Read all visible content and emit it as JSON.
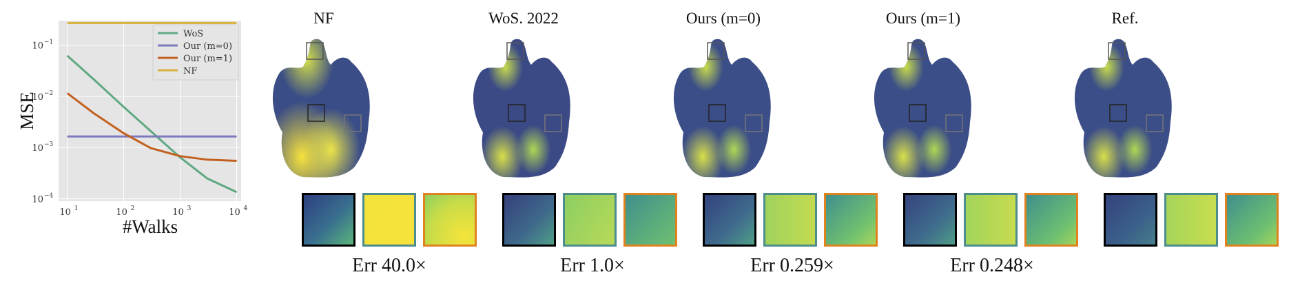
{
  "chart_data": {
    "type": "line",
    "xlabel": "#Walks",
    "ylabel": "MSE",
    "x_scale": "log",
    "y_scale": "log",
    "xlim": [
      7,
      12000
    ],
    "ylim": [
      9e-05,
      0.3
    ],
    "x_ticks": [
      {
        "v": 10,
        "label": "10"
      },
      {
        "v": 100,
        "label": "10"
      },
      {
        "v": 1000,
        "label": "10"
      },
      {
        "v": 10000,
        "label": "10"
      }
    ],
    "x_tick_exps": [
      "1",
      "2",
      "3",
      "4"
    ],
    "y_ticks": [
      {
        "v": 0.1,
        "label": "10"
      },
      {
        "v": 0.01,
        "label": "10"
      },
      {
        "v": 0.001,
        "label": "10"
      },
      {
        "v": 0.0001,
        "label": "10"
      }
    ],
    "y_tick_exps": [
      "−1",
      "−2",
      "−3",
      "−4"
    ],
    "grid": true,
    "legend_position": "top-right",
    "series": [
      {
        "name": "WoS",
        "color": "#5fa882",
        "x": [
          10,
          30,
          100,
          300,
          1000,
          3000,
          10000
        ],
        "y": [
          0.062,
          0.021,
          0.0062,
          0.0021,
          0.00064,
          0.00025,
          0.000135
        ]
      },
      {
        "name": "Our (m=0)",
        "color": "#7c79bd",
        "x": [
          10,
          10000
        ],
        "y": [
          0.00165,
          0.00165
        ]
      },
      {
        "name": "Our (m=1)",
        "color": "#c2601f",
        "x": [
          10,
          30,
          100,
          300,
          1000,
          3000,
          10000
        ],
        "y": [
          0.0115,
          0.0046,
          0.0019,
          0.00098,
          0.00068,
          0.00058,
          0.00055
        ]
      },
      {
        "name": "NF",
        "color": "#d9b13b",
        "x": [
          10,
          10000
        ],
        "y": [
          0.27,
          0.27
        ]
      }
    ]
  },
  "panels": [
    {
      "title": "NF",
      "err": "Err 40.0×"
    },
    {
      "title": "WoS. 2022",
      "err": "Err 1.0×"
    },
    {
      "title": "Ours (m=0)",
      "err": "Err 0.259×"
    },
    {
      "title": "Ours (m=1)",
      "err": "Err 0.248×"
    },
    {
      "title": "Ref.",
      "err": ""
    }
  ]
}
